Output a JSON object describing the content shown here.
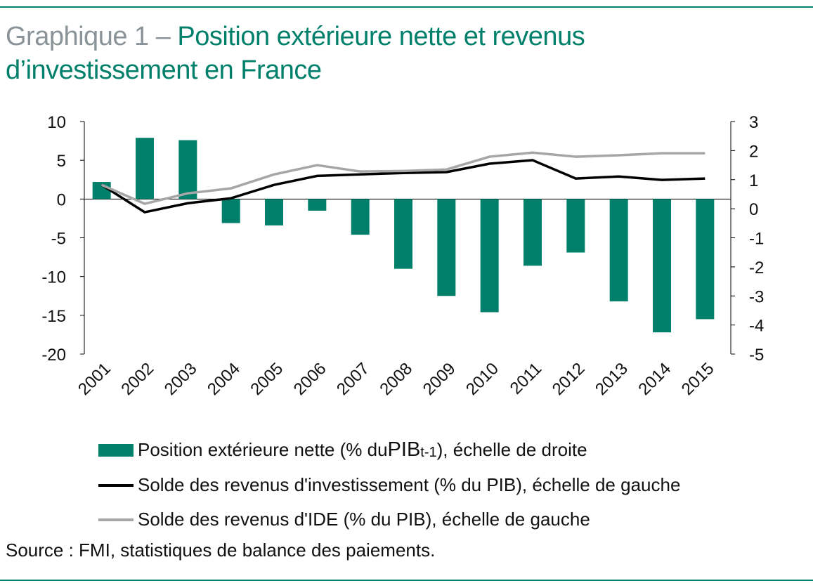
{
  "title": {
    "prefix": "Graphique 1 – ",
    "line1": "Position extérieure nette et revenus",
    "line2": "d’investissement en France"
  },
  "chart_data": {
    "type": "bar+line",
    "categories": [
      "2001",
      "2002",
      "2003",
      "2004",
      "2005",
      "2006",
      "2007",
      "2008",
      "2009",
      "2010",
      "2011",
      "2012",
      "2013",
      "2014",
      "2015"
    ],
    "left_axis": {
      "ylim": [
        -20,
        10
      ],
      "ticks": [
        "10",
        "5",
        "0",
        "-5",
        "-10",
        "-15",
        "-20"
      ]
    },
    "right_axis": {
      "ylim": [
        -5,
        3
      ],
      "ticks": [
        "3",
        "2",
        "1",
        "0",
        "-1",
        "-2",
        "-3",
        "-4",
        "-5"
      ]
    },
    "series": [
      {
        "name": "Position extérieure nette (% du PIBt-1), échelle de droite",
        "kind": "bar",
        "axis": "left",
        "color": "#00806a",
        "values": [
          2.2,
          7.9,
          7.6,
          -3.1,
          -3.4,
          -1.5,
          -4.6,
          -9.0,
          -12.5,
          -14.6,
          -8.6,
          -6.9,
          -13.2,
          -17.2,
          -15.5
        ]
      },
      {
        "name": "Solde des revenus d'investissement (% du PIB), échelle de gauche",
        "kind": "line",
        "axis": "right",
        "color": "#000000",
        "values": [
          0.82,
          -0.12,
          0.19,
          0.36,
          0.82,
          1.13,
          1.18,
          1.23,
          1.26,
          1.55,
          1.67,
          1.04,
          1.11,
          0.99,
          1.04
        ]
      },
      {
        "name": "Solde des revenus d'IDE (% du PIB), échelle de gauche",
        "kind": "line",
        "axis": "right",
        "color": "#a6a6a6",
        "values": [
          0.82,
          0.17,
          0.53,
          0.7,
          1.18,
          1.5,
          1.28,
          1.3,
          1.35,
          1.79,
          1.93,
          1.79,
          1.84,
          1.91,
          1.91
        ]
      }
    ],
    "legend": {
      "bar_main": "Position extérieure nette (% du ",
      "bar_pib": "PIB",
      "bar_sub": "t-1",
      "bar_end": "), échelle de droite",
      "line1": "Solde des revenus d'investissement (% du PIB), échelle de gauche",
      "line2": "Solde des revenus d'IDE (% du PIB), échelle de gauche"
    },
    "grid": false,
    "legend_placement": "bottom"
  },
  "source": "Source : FMI, statistiques de balance des paiements."
}
